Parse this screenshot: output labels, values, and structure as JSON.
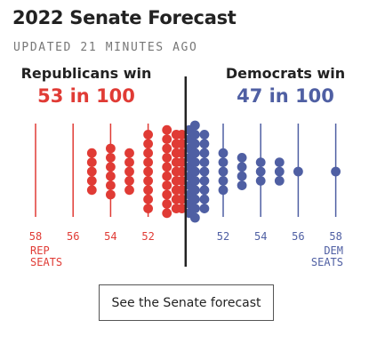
{
  "header": {
    "title": "2022 Senate Forecast",
    "updated": "UPDATED 21 MINUTES AGO"
  },
  "cta": {
    "label": "See the Senate forecast"
  },
  "colors": {
    "republican": "#e03b35",
    "democrat": "#4f5fa3",
    "divider": "#222222",
    "heading": "#222222"
  },
  "chart_data": {
    "type": "scatter",
    "subtype": "dot distribution (100 simulated outcomes)",
    "x_unit": "Democratic Senate seats",
    "x_range": [
      42,
      58
    ],
    "majority_line": 50,
    "sides": [
      {
        "name": "republican",
        "heading": "Republicans win",
        "odds": "53 in 100"
      },
      {
        "name": "democrat",
        "heading": "Democrats win",
        "odds": "47 in 100"
      }
    ],
    "left_ticks": [
      {
        "value": 42,
        "label": "58"
      },
      {
        "value": 44,
        "label": "56"
      },
      {
        "value": 46,
        "label": "54"
      },
      {
        "value": 48,
        "label": "52"
      }
    ],
    "right_ticks": [
      {
        "value": 52,
        "label": "52"
      },
      {
        "value": 54,
        "label": "54"
      },
      {
        "value": 56,
        "label": "56"
      },
      {
        "value": 58,
        "label": "58"
      }
    ],
    "left_axis_caption": [
      "REP",
      "SEATS"
    ],
    "right_axis_caption": [
      "DEM",
      "SEATS"
    ],
    "dots": [
      {
        "dem_seats": 45,
        "count": 5,
        "party": "republican"
      },
      {
        "dem_seats": 46,
        "count": 6,
        "party": "republican"
      },
      {
        "dem_seats": 47,
        "count": 5,
        "party": "republican"
      },
      {
        "dem_seats": 48,
        "count": 9,
        "party": "republican"
      },
      {
        "dem_seats": 49,
        "count": 10,
        "party": "republican"
      },
      {
        "dem_seats": 49.5,
        "count": 9,
        "party": "republican"
      },
      {
        "dem_seats": 49.8,
        "count": 9,
        "party": "republican"
      },
      {
        "dem_seats": 50.2,
        "count": 10,
        "party": "democrat"
      },
      {
        "dem_seats": 50.5,
        "count": 11,
        "party": "democrat"
      },
      {
        "dem_seats": 51,
        "count": 9,
        "party": "democrat"
      },
      {
        "dem_seats": 52,
        "count": 5,
        "party": "democrat"
      },
      {
        "dem_seats": 53,
        "count": 4,
        "party": "democrat"
      },
      {
        "dem_seats": 54,
        "count": 3,
        "party": "democrat"
      },
      {
        "dem_seats": 55,
        "count": 3,
        "party": "democrat"
      },
      {
        "dem_seats": 56,
        "count": 1,
        "party": "democrat"
      },
      {
        "dem_seats": 58,
        "count": 1,
        "party": "democrat"
      }
    ]
  }
}
